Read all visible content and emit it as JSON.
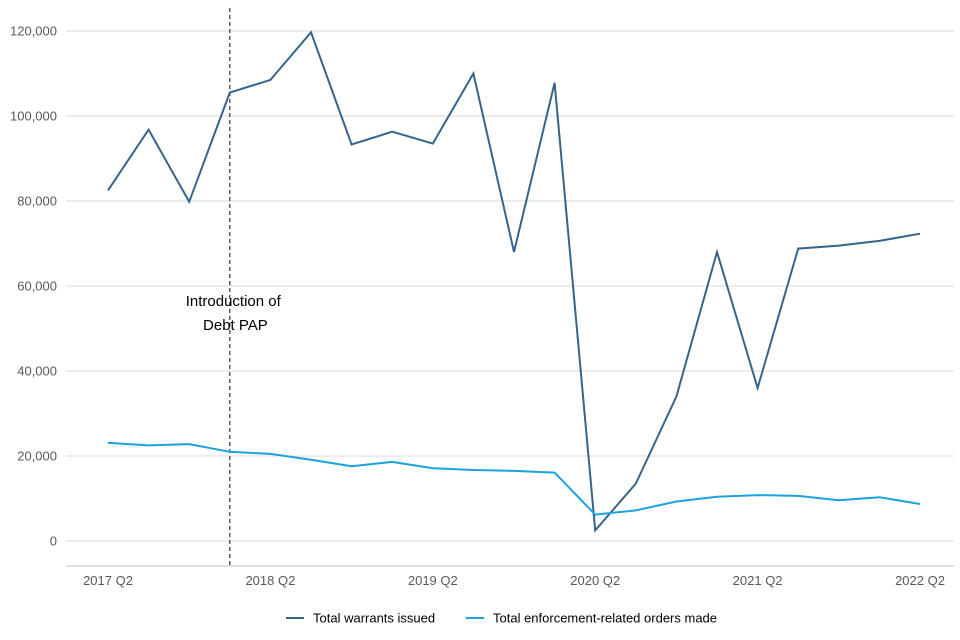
{
  "chart_data": {
    "type": "line",
    "categories": [
      "2017 Q2",
      "2017 Q3",
      "2017 Q4",
      "2018 Q1",
      "2018 Q2",
      "2018 Q3",
      "2018 Q4",
      "2019 Q1",
      "2019 Q2",
      "2019 Q3",
      "2019 Q4",
      "2020 Q1",
      "2020 Q2",
      "2020 Q3",
      "2020 Q4",
      "2021 Q1",
      "2021 Q2",
      "2021 Q3",
      "2021 Q4",
      "2022 Q1",
      "2022 Q2"
    ],
    "x_tick_labels": [
      "2017 Q2",
      "2018 Q2",
      "2019 Q2",
      "2020 Q2",
      "2021 Q2",
      "2022 Q2"
    ],
    "series": [
      {
        "name": "Total warrants issued",
        "color": "#36648b",
        "values": [
          82500,
          96800,
          79800,
          105500,
          108500,
          119700,
          93300,
          96300,
          93500,
          110000,
          68000,
          107800,
          2500,
          13500,
          34000,
          68000,
          36000,
          68800,
          69500,
          70600,
          72300
        ]
      },
      {
        "name": "Total enforcement-related orders made",
        "color": "#1aa3dc",
        "values": [
          23100,
          22500,
          22800,
          21000,
          20500,
          19100,
          17600,
          18600,
          17100,
          16700,
          16500,
          16100,
          6200,
          7200,
          9300,
          10400,
          10800,
          10600,
          9600,
          10300,
          8700
        ]
      }
    ],
    "ylim": [
      0,
      120000
    ],
    "y_ticks": [
      "0",
      "20,000",
      "40,000",
      "60,000",
      "80,000",
      "100,000",
      "120,000"
    ],
    "y_tick_values": [
      0,
      20000,
      40000,
      60000,
      80000,
      100000,
      120000
    ],
    "grid": true,
    "legend_position": "bottom",
    "annotation": {
      "lines": [
        "Introduction of",
        "Debt PAP"
      ],
      "at_category": "2018 Q1",
      "style": "dashed vertical line"
    }
  }
}
